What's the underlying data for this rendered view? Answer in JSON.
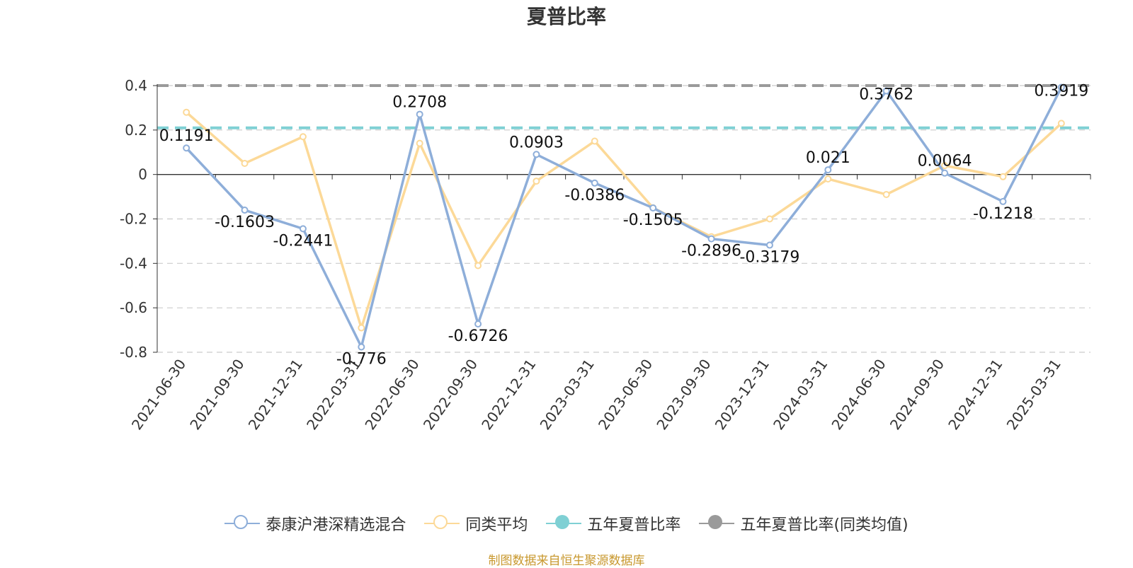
{
  "chart_data": {
    "type": "line",
    "title": "夏普比率",
    "categories": [
      "2021-06-30",
      "2021-09-30",
      "2021-12-31",
      "2022-03-31",
      "2022-06-30",
      "2022-09-30",
      "2022-12-31",
      "2023-03-31",
      "2023-06-30",
      "2023-09-30",
      "2023-12-31",
      "2024-03-31",
      "2024-06-30",
      "2024-09-30",
      "2024-12-31",
      "2025-03-31"
    ],
    "ylim": [
      -0.8,
      0.4
    ],
    "yticks": [
      "0.4",
      "0.2",
      "0",
      "-0.2",
      "-0.4",
      "-0.6",
      "-0.8"
    ],
    "grid": true,
    "legend_position": "bottom",
    "series": [
      {
        "name": "泰康沪港深精选混合",
        "color": "#8eaed9",
        "values": [
          0.1191,
          -0.1603,
          -0.2441,
          -0.776,
          0.2708,
          -0.6726,
          0.0903,
          -0.0386,
          -0.1505,
          -0.2896,
          -0.3179,
          0.021,
          0.3762,
          0.0064,
          -0.1218,
          0.3919
        ],
        "labels": [
          "0.1191",
          "-0.1603",
          "-0.2441",
          "-0.776",
          "0.2708",
          "-0.6726",
          "0.0903",
          "-0.0386",
          "-0.1505",
          "-0.2896",
          "-0.3179",
          "0.021",
          "0.3762",
          "0.0064",
          "-0.1218",
          "0.3919"
        ]
      },
      {
        "name": "同类平均",
        "color": "#fcd998",
        "values": [
          0.28,
          0.05,
          0.17,
          -0.69,
          0.14,
          -0.41,
          -0.03,
          0.15,
          -0.15,
          -0.28,
          -0.2,
          -0.02,
          -0.09,
          0.04,
          -0.01,
          0.23
        ]
      }
    ],
    "reference_lines": [
      {
        "name": "五年夏普比率",
        "color": "#7fd0d4",
        "value": 0.21
      },
      {
        "name": "五年夏普比率(同类均值)",
        "color": "#9a9a9a",
        "value": 0.4
      }
    ]
  },
  "source_note": "制图数据来自恒生聚源数据库"
}
